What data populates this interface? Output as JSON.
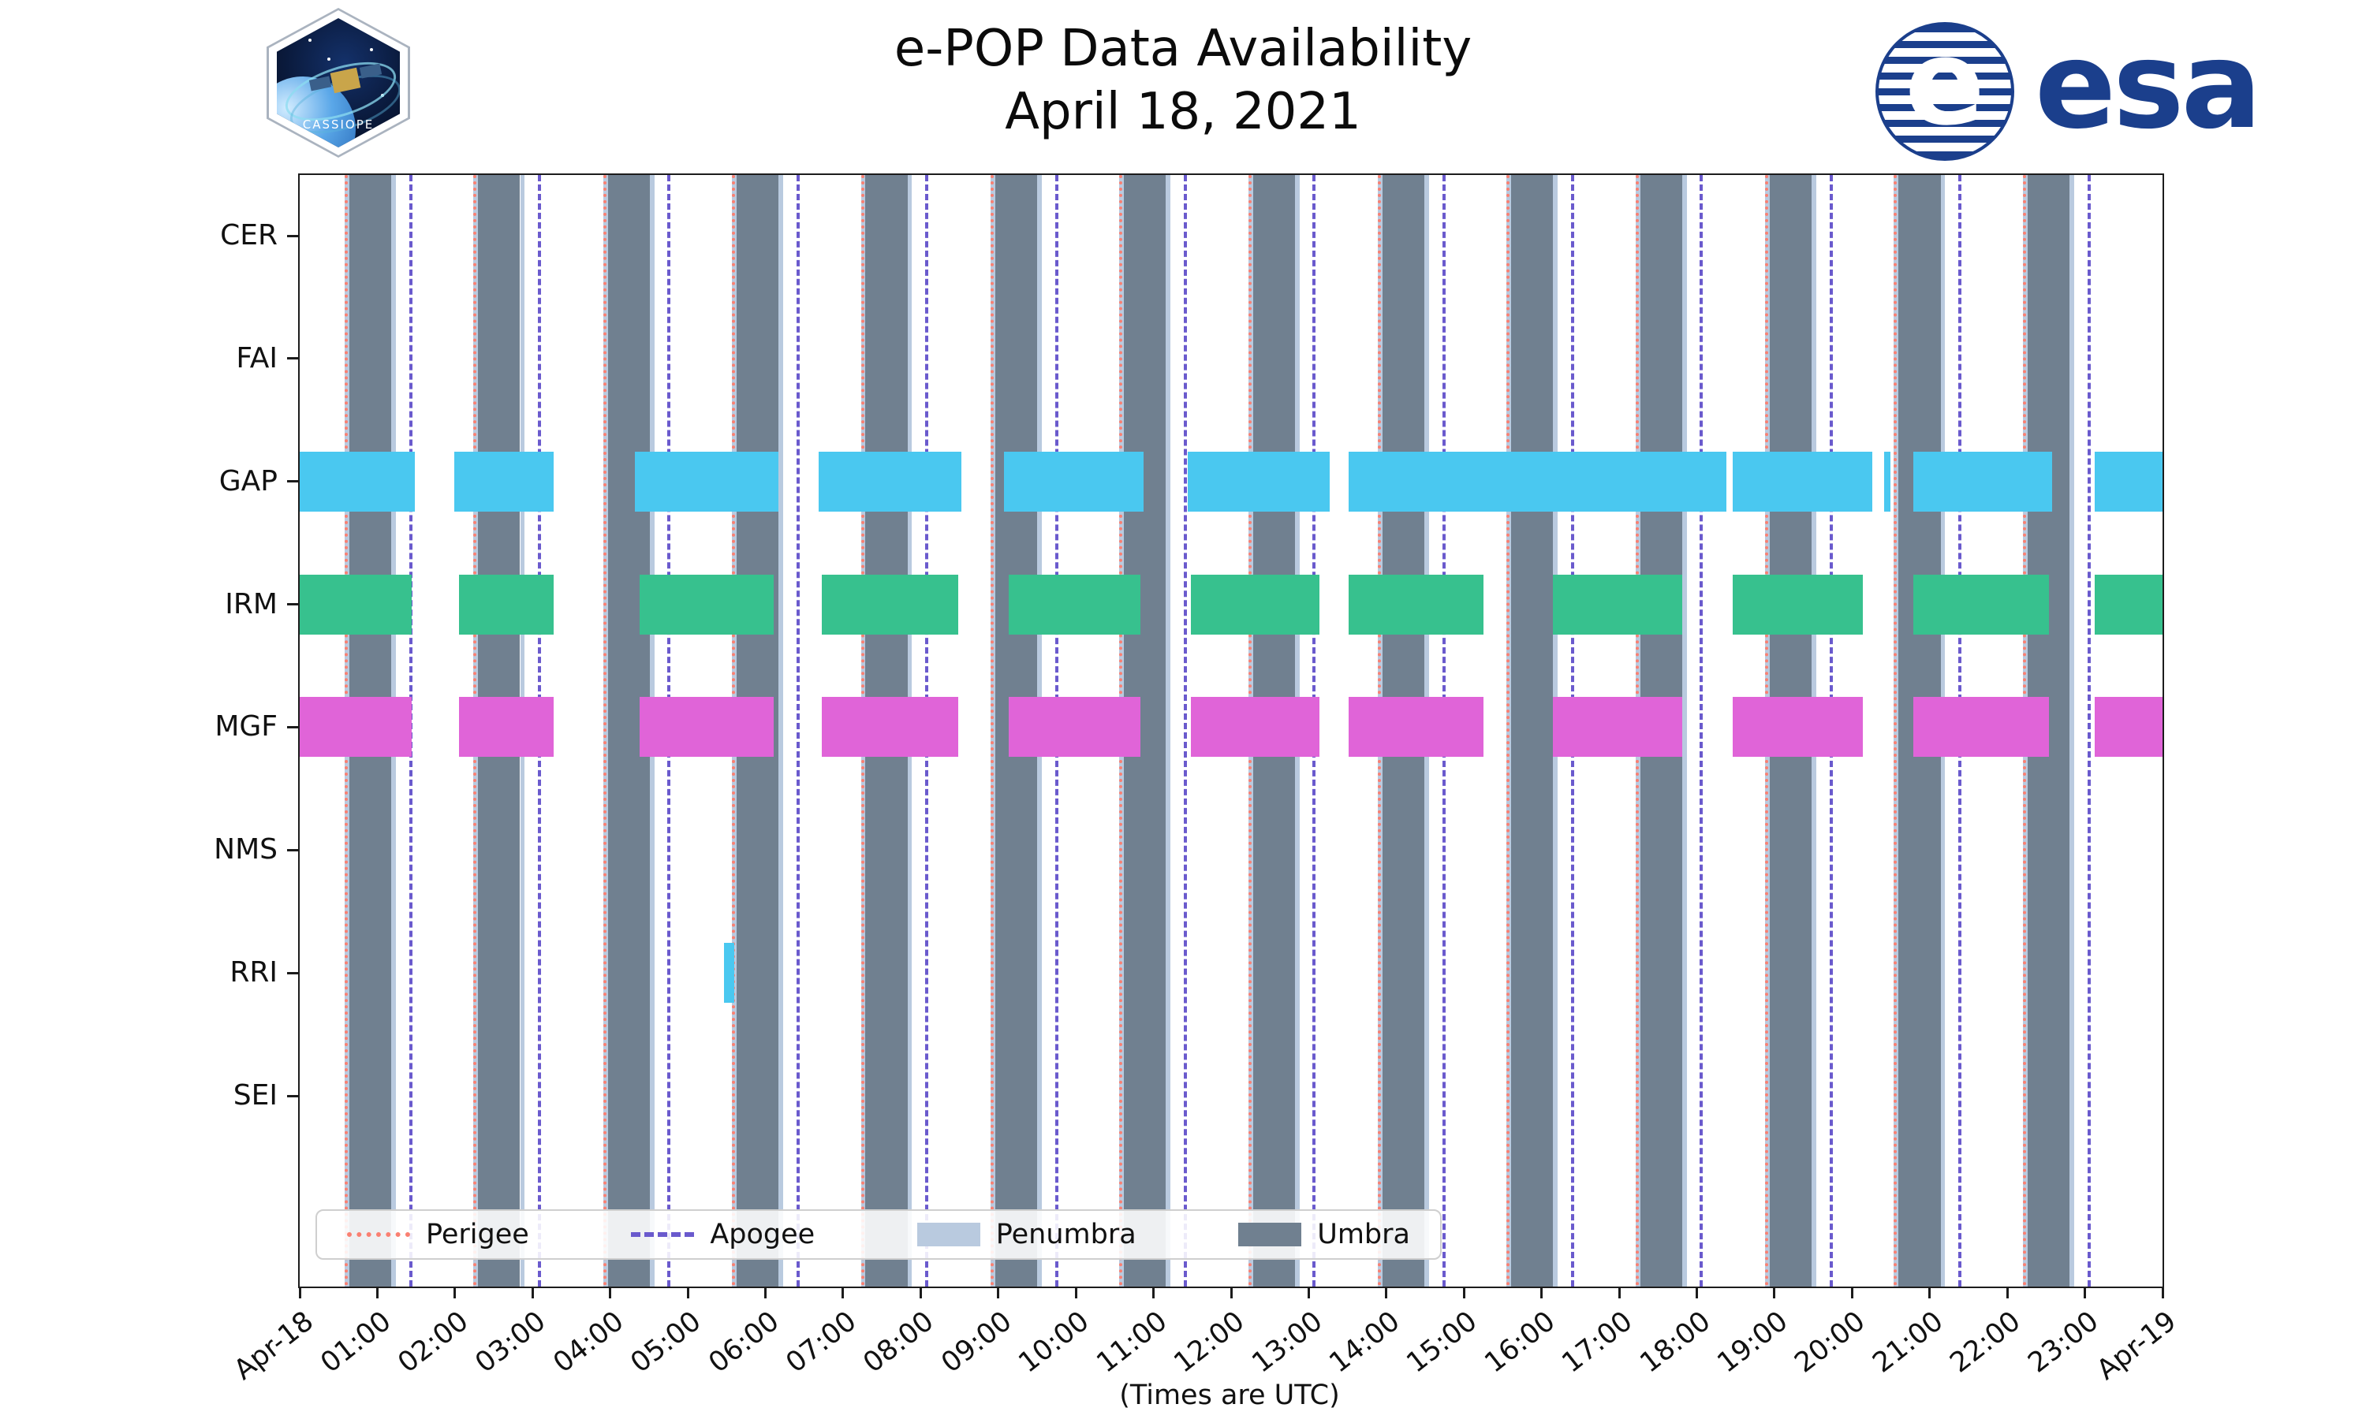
{
  "header": {
    "title": "e-POP Data Availability",
    "subtitle": "April 18, 2021"
  },
  "logos": {
    "cassiope_label": "CASSIOPE",
    "esa_label": "esa",
    "esa_globe_letter": "e"
  },
  "colors": {
    "esa_blue": "#1b3f8c",
    "gap_bar": "#4ac8f0",
    "irm_bar": "#37c18e",
    "mgf_bar": "#e064d8",
    "rri_bar": "#4ac8f0",
    "umbra": "#708090",
    "penumbra": "#b9cadf",
    "perigee": "#fa8072",
    "apogee": "#6a5acd"
  },
  "axis": {
    "xlabel": "(Times are UTC)"
  },
  "legend": {
    "items": [
      {
        "label": "Perigee",
        "swatch": "dotted-line",
        "color": "#fa8072"
      },
      {
        "label": "Apogee",
        "swatch": "dashed-line",
        "color": "#6a5acd"
      },
      {
        "label": "Penumbra",
        "swatch": "patch",
        "color": "#b9cadf"
      },
      {
        "label": "Umbra",
        "swatch": "patch",
        "color": "#708090"
      }
    ]
  },
  "chart_data": {
    "type": "bar",
    "subtype": "gantt-availability-timeline",
    "title": "e-POP Data Availability, April 18, 2021",
    "xlabel": "(Times are UTC)",
    "rows": [
      "CER",
      "FAI",
      "GAP",
      "IRM",
      "MGF",
      "NMS",
      "RRI",
      "SEI"
    ],
    "x_axis": {
      "unit": "hours UTC on 2021-04-18",
      "range": [
        0,
        24
      ],
      "tick_hours": [
        0,
        1,
        2,
        3,
        4,
        5,
        6,
        7,
        8,
        9,
        10,
        11,
        12,
        13,
        14,
        15,
        16,
        17,
        18,
        19,
        20,
        21,
        22,
        23,
        24
      ],
      "tick_labels": [
        "Apr-18",
        "01:00",
        "02:00",
        "03:00",
        "04:00",
        "05:00",
        "06:00",
        "07:00",
        "08:00",
        "09:00",
        "10:00",
        "11:00",
        "12:00",
        "13:00",
        "14:00",
        "15:00",
        "16:00",
        "17:00",
        "18:00",
        "19:00",
        "20:00",
        "21:00",
        "22:00",
        "23:00",
        "Apr-19"
      ]
    },
    "series": [
      {
        "name": "GAP",
        "color": "#4ac8f0",
        "intervals": [
          [
            0.0,
            1.48
          ],
          [
            1.99,
            3.27
          ],
          [
            4.32,
            6.17
          ],
          [
            6.69,
            8.52
          ],
          [
            9.07,
            10.87
          ],
          [
            11.44,
            13.27
          ],
          [
            13.51,
            18.38
          ],
          [
            18.46,
            20.26
          ],
          [
            20.41,
            20.49
          ],
          [
            20.79,
            22.58
          ],
          [
            23.13,
            24.0
          ]
        ]
      },
      {
        "name": "IRM",
        "color": "#37c18e",
        "intervals": [
          [
            0.0,
            1.44
          ],
          [
            2.05,
            3.27
          ],
          [
            4.38,
            6.11
          ],
          [
            6.73,
            8.48
          ],
          [
            9.13,
            10.83
          ],
          [
            11.48,
            13.14
          ],
          [
            13.51,
            15.25
          ],
          [
            16.15,
            17.81
          ],
          [
            18.46,
            20.14
          ],
          [
            20.79,
            22.54
          ],
          [
            23.13,
            24.0
          ]
        ]
      },
      {
        "name": "MGF",
        "color": "#e064d8",
        "intervals": [
          [
            0.0,
            1.44
          ],
          [
            2.05,
            3.27
          ],
          [
            4.38,
            6.11
          ],
          [
            6.73,
            8.48
          ],
          [
            9.13,
            10.83
          ],
          [
            11.48,
            13.14
          ],
          [
            13.51,
            15.25
          ],
          [
            16.15,
            17.81
          ],
          [
            18.46,
            20.14
          ],
          [
            20.79,
            22.54
          ],
          [
            23.13,
            24.0
          ]
        ]
      },
      {
        "name": "RRI",
        "color": "#4ac8f0",
        "intervals": [
          [
            5.47,
            5.6
          ]
        ]
      }
    ],
    "events": {
      "perigee": {
        "style": "dotted",
        "color": "#fa8072",
        "times": [
          0.6,
          2.26,
          3.93,
          5.59,
          7.25,
          8.92,
          10.58,
          12.24,
          13.91,
          15.57,
          17.23,
          18.9,
          20.56,
          22.22
        ]
      },
      "apogee": {
        "style": "dashed",
        "color": "#6a5acd",
        "times": [
          1.43,
          3.09,
          4.76,
          6.42,
          8.08,
          9.75,
          11.41,
          13.07,
          14.74,
          16.4,
          18.06,
          19.73,
          21.39,
          23.05
        ]
      }
    },
    "shading": {
      "umbra": {
        "color": "#708090",
        "intervals": [
          [
            0.64,
            1.18
          ],
          [
            2.3,
            2.84
          ],
          [
            3.97,
            4.51
          ],
          [
            5.63,
            6.17
          ],
          [
            7.29,
            7.83
          ],
          [
            8.96,
            9.5
          ],
          [
            10.62,
            11.16
          ],
          [
            12.28,
            12.82
          ],
          [
            13.95,
            14.49
          ],
          [
            15.61,
            16.15
          ],
          [
            17.27,
            17.81
          ],
          [
            18.94,
            19.48
          ],
          [
            20.6,
            21.14
          ],
          [
            22.26,
            22.8
          ]
        ]
      },
      "penumbra": {
        "color": "#b9cadf",
        "edge_width_hours": 0.06
      }
    },
    "legend_position": "lower left inside plot",
    "grid": false
  }
}
